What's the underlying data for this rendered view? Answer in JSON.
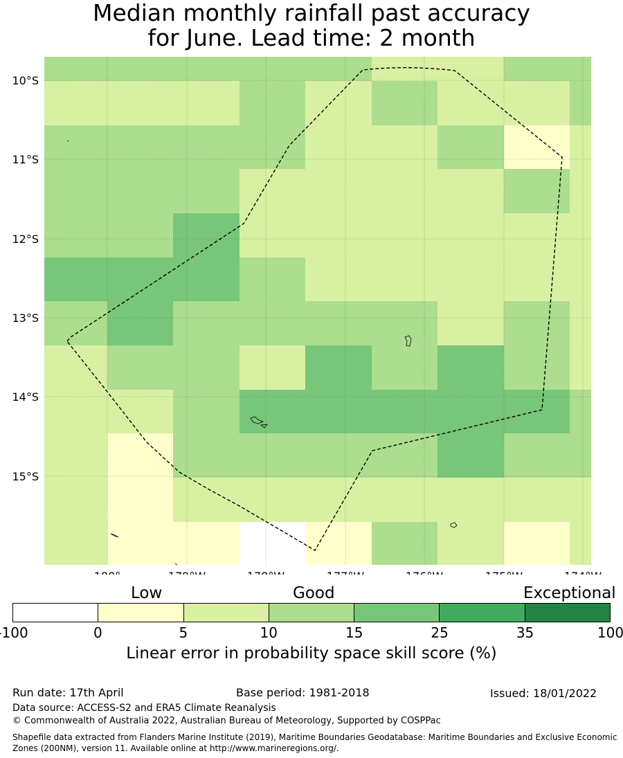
{
  "title": {
    "line1": "Median monthly rainfall past accuracy",
    "line2": "for June. Lead time: 2 month"
  },
  "map": {
    "lat_labels": [
      "10°S",
      "11°S",
      "12°S",
      "13°S",
      "14°S",
      "15°S"
    ],
    "lon_labels": [
      "180°",
      "179°W",
      "178°W",
      "177°W",
      "176°W",
      "175°W",
      "174°W"
    ]
  },
  "legend": {
    "category_labels": [
      "Low",
      "Good",
      "Exceptional"
    ],
    "ticks": [
      "-100",
      "0",
      "5",
      "10",
      "15",
      "25",
      "35",
      "100"
    ],
    "colors": [
      "#ffffff",
      "#ffffcc",
      "#d9f0a3",
      "#addd8e",
      "#78c679",
      "#41ab5d",
      "#238443"
    ],
    "title": "Linear error in probability space skill score (%)"
  },
  "footer": {
    "run_date": "Run date: 17th April",
    "base_period": "Base period: 1981-2018",
    "issued": "Issued: 18/01/2022",
    "data_source": "Data source: ACCESS-S2 and ERA5 Climate Reanalysis",
    "copyright": "© Commonwealth of Australia 2022, Australian Bureau of Meteorology, Supported by COSPPac",
    "shapefile": "Shapefile data extracted from Flanders Marine Institute (2019), Maritime Boundaries Geodatabase: Maritime Boundaries and Exclusive Economic Zones (200NM), version 11. Available online at http://www.marineregions.org/."
  },
  "grid_classes": [
    [
      "C3",
      "C3",
      "C3",
      "C3",
      "C3",
      "C2",
      "C2",
      "C3",
      "C3"
    ],
    [
      "C2",
      "C2",
      "C2",
      "C3",
      "C2",
      "C3",
      "C2",
      "C2",
      "C3"
    ],
    [
      "C3",
      "C3",
      "C3",
      "C3",
      "C2",
      "C2",
      "C3",
      "C1",
      "C2"
    ],
    [
      "C3",
      "C3",
      "C3",
      "C2",
      "C2",
      "C2",
      "C2",
      "C3",
      "C2"
    ],
    [
      "C3",
      "C3",
      "C4",
      "C2",
      "C2",
      "C2",
      "C2",
      "C2",
      "C2"
    ],
    [
      "C4",
      "C4",
      "C4",
      "C3",
      "C2",
      "C2",
      "C2",
      "C2",
      "C2"
    ],
    [
      "C3",
      "C4",
      "C3",
      "C3",
      "C3",
      "C3",
      "C2",
      "C3",
      "C2"
    ],
    [
      "C2",
      "C3",
      "C3",
      "C2",
      "C4",
      "C3",
      "C4",
      "C3",
      "C2"
    ],
    [
      "C2",
      "C2",
      "C3",
      "C4",
      "C4",
      "C4",
      "C4",
      "C4",
      "C3"
    ],
    [
      "C2",
      "C1",
      "C3",
      "C3",
      "C3",
      "C3",
      "C4",
      "C3",
      "C3"
    ],
    [
      "C2",
      "C1",
      "C2",
      "C2",
      "C2",
      "C2",
      "C2",
      "C2",
      "C2"
    ],
    [
      "C2",
      "C1",
      "C1",
      "C0",
      "C1",
      "C3",
      "C2",
      "C1",
      "C2"
    ]
  ]
}
